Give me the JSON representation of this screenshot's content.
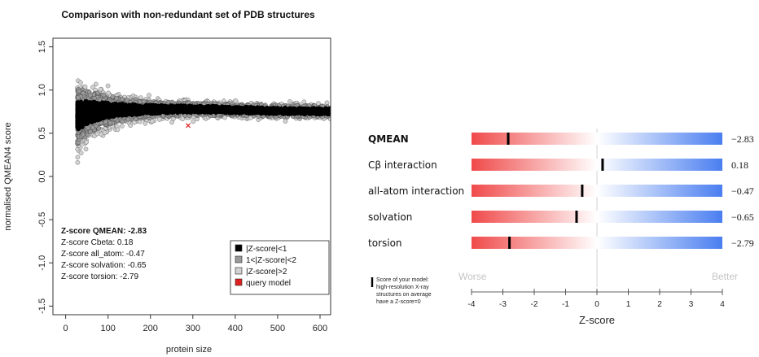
{
  "chart_data": [
    {
      "type": "scatter",
      "title": "Comparison with non-redundant set of PDB structures",
      "xlabel": "protein size",
      "ylabel": "normalised QMEAN4 score",
      "xlim": [
        -30,
        625
      ],
      "ylim": [
        -1.6,
        1.6
      ],
      "xticks": [
        0,
        100,
        200,
        300,
        400,
        500,
        600
      ],
      "yticks": [
        -1.5,
        -1.0,
        -0.5,
        0.0,
        0.5,
        1.0,
        1.5
      ],
      "tick_labels_x": [
        "0",
        "100",
        "200",
        "300",
        "400",
        "500",
        "600"
      ],
      "tick_labels_y": [
        "-1.5",
        "-1.0",
        "-0.5",
        "0.0",
        "0.5",
        "1.0",
        "1.5"
      ],
      "series": [
        {
          "name": "|Z-score|<1",
          "color": "#000000",
          "x": [
            30,
            50,
            80,
            120,
            200,
            300,
            400,
            500,
            620
          ],
          "y": [
            0.7,
            0.74,
            0.76,
            0.77,
            0.775,
            0.78,
            0.77,
            0.76,
            0.755
          ]
        },
        {
          "name": "1<|Z-score|<2",
          "color": "#9a9a9a",
          "x": [
            30,
            50,
            80,
            120,
            200,
            300,
            400,
            500,
            620
          ],
          "y": [
            0.7,
            0.74,
            0.76,
            0.77,
            0.775,
            0.78,
            0.77,
            0.76,
            0.755
          ]
        },
        {
          "name": "|Z-score|>2",
          "color": "#d2d2d2",
          "x": [
            30,
            50,
            80,
            120,
            200,
            300,
            400,
            500,
            620
          ],
          "y": [
            0.7,
            0.74,
            0.76,
            0.77,
            0.775,
            0.78,
            0.77,
            0.76,
            0.755
          ]
        },
        {
          "name": "query model",
          "color": "#e02020",
          "x": [
            289
          ],
          "y": [
            0.59
          ]
        }
      ],
      "stats": [
        {
          "label": "Z-score QMEAN: -2.83",
          "bold": true
        },
        {
          "label": "Z-score Cbeta: 0.18",
          "bold": false
        },
        {
          "label": "Z-score all_atom: -0.47",
          "bold": false
        },
        {
          "label": "Z-score solvation: -0.65",
          "bold": false
        },
        {
          "label": "Z-score torsion: -2.79",
          "bold": false
        }
      ],
      "legend_position": "bottom-right",
      "grid": false
    },
    {
      "type": "bar",
      "xlabel": "Z-score",
      "xlim": [
        -4,
        4
      ],
      "xticks": [
        -4,
        -3,
        -2,
        -1,
        0,
        1,
        2,
        3,
        4
      ],
      "tick_labels_x": [
        "-4",
        "-3",
        "-2",
        "-1",
        "0",
        "1",
        "2",
        "3",
        "4"
      ],
      "rows": [
        {
          "label": "QMEAN",
          "value": -2.83,
          "value_label": "−2.83",
          "bold": true
        },
        {
          "label": "Cβ interaction",
          "value": 0.18,
          "value_label": "0.18",
          "bold": false
        },
        {
          "label": "all-atom interaction",
          "value": -0.47,
          "value_label": "−0.47",
          "bold": false
        },
        {
          "label": "solvation",
          "value": -0.65,
          "value_label": "−0.65",
          "bold": false
        },
        {
          "label": "torsion",
          "value": -2.79,
          "value_label": "−2.79",
          "bold": false
        }
      ],
      "worse_label": "Worse",
      "better_label": "Better",
      "note_lines": [
        "Score of your model:",
        "high-resolution X-ray",
        "structures on average",
        "have a Z-score=0"
      ],
      "colors": {
        "worse": "#f04a4a",
        "better": "#4a7ef0",
        "neutral": "#ffffff"
      }
    }
  ]
}
